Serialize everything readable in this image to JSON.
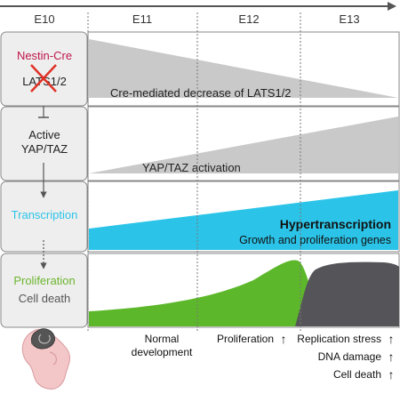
{
  "timeline": {
    "stages": [
      "E10",
      "E11",
      "E12",
      "E13"
    ]
  },
  "rows": {
    "cre": {
      "label_top": "Nestin-Cre",
      "label_bottom": "LATS1/2",
      "description": "Cre-mediated decrease of LATS1/2"
    },
    "yap": {
      "label_top": "Active",
      "label_bottom": "YAP/TAZ",
      "description": "YAP/TAZ activation"
    },
    "transcription": {
      "label": "Transcription",
      "title": "Hypertranscription",
      "subtitle": "Growth and proliferation genes"
    },
    "proliferation": {
      "label_top": "Proliferation",
      "label_bottom": "Cell death"
    }
  },
  "annotations": {
    "normal_line1": "Normal",
    "normal_line2": "development",
    "proliferation": "Proliferation",
    "replication_stress": "Replication stress",
    "dna_damage": "DNA damage",
    "cell_death": "Cell death",
    "up_arrow": "↑"
  },
  "colors": {
    "grey_panel": "#eeeeee",
    "grey_wedge": "#c9c9c9",
    "cyan": "#2bc4e8",
    "green": "#5cb82a",
    "dark_grey": "#555559",
    "cre_red": "#c0174c",
    "cross_red": "#e03226",
    "prolif_green": "#6cb52e"
  }
}
